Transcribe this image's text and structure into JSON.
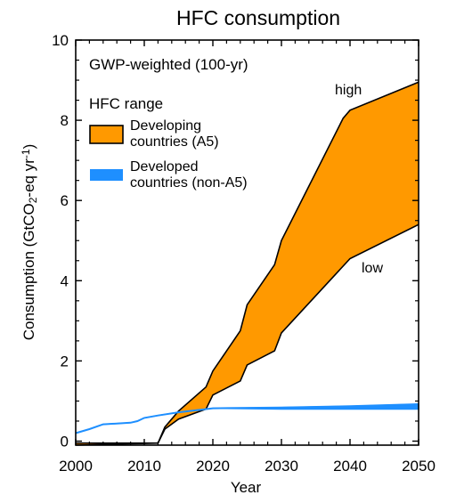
{
  "chart_data": {
    "type": "area",
    "title": "HFC consumption",
    "xlabel": "Year",
    "ylabel": {
      "main": "Consumption (GtCO",
      "sub": "2",
      "mid": "-eq yr",
      "sup": "-1",
      "end": ")"
    },
    "xlim": [
      2000,
      2050
    ],
    "ylim": [
      -0.1,
      10
    ],
    "xticks": [
      "2000",
      "2010",
      "2020",
      "2030",
      "2040",
      "2050"
    ],
    "yticks": [
      "0",
      "2",
      "4",
      "6",
      "8",
      "10"
    ],
    "grid": false,
    "annotation": "GWP-weighted (100-yr)",
    "legend": {
      "title": "HFC range",
      "position": "top-left",
      "items": [
        {
          "label_line1": "Developing",
          "label_line2": "countries (A5)",
          "color": "#FF9900"
        },
        {
          "label_line1": "Developed",
          "label_line2": "countries (non-A5)",
          "color": "#1E8FFF"
        }
      ]
    },
    "series": [
      {
        "name": "Developing countries (A5)",
        "color": "#FF9900",
        "upper_label": "high",
        "lower_label": "low",
        "upper": [
          [
            2000,
            -0.05
          ],
          [
            2012,
            -0.05
          ],
          [
            2013,
            0.35
          ],
          [
            2015,
            0.75
          ],
          [
            2019,
            1.35
          ],
          [
            2020,
            1.75
          ],
          [
            2024,
            2.75
          ],
          [
            2025,
            3.4
          ],
          [
            2029,
            4.4
          ],
          [
            2030,
            5.0
          ],
          [
            2039,
            8.05
          ],
          [
            2040,
            8.25
          ],
          [
            2050,
            8.95
          ]
        ],
        "lower": [
          [
            2000,
            -0.1
          ],
          [
            2012,
            -0.05
          ],
          [
            2013,
            0.3
          ],
          [
            2015,
            0.55
          ],
          [
            2019,
            0.8
          ],
          [
            2020,
            1.15
          ],
          [
            2024,
            1.5
          ],
          [
            2025,
            1.9
          ],
          [
            2029,
            2.25
          ],
          [
            2030,
            2.7
          ],
          [
            2040,
            4.55
          ],
          [
            2050,
            5.4
          ]
        ]
      },
      {
        "name": "Developed countries (non-A5)",
        "color": "#1E8FFF",
        "upper": [
          [
            2000,
            0.2
          ],
          [
            2002,
            0.3
          ],
          [
            2004,
            0.42
          ],
          [
            2006,
            0.44
          ],
          [
            2008,
            0.46
          ],
          [
            2009,
            0.5
          ],
          [
            2010,
            0.58
          ],
          [
            2012,
            0.64
          ],
          [
            2015,
            0.72
          ],
          [
            2020,
            0.82
          ],
          [
            2030,
            0.84
          ],
          [
            2040,
            0.87
          ],
          [
            2050,
            0.92
          ]
        ],
        "lower": [
          [
            2000,
            0.2
          ],
          [
            2002,
            0.3
          ],
          [
            2004,
            0.42
          ],
          [
            2006,
            0.44
          ],
          [
            2008,
            0.46
          ],
          [
            2009,
            0.5
          ],
          [
            2010,
            0.58
          ],
          [
            2012,
            0.64
          ],
          [
            2015,
            0.72
          ],
          [
            2020,
            0.82
          ],
          [
            2030,
            0.8
          ],
          [
            2040,
            0.8
          ],
          [
            2050,
            0.8
          ]
        ]
      }
    ]
  }
}
